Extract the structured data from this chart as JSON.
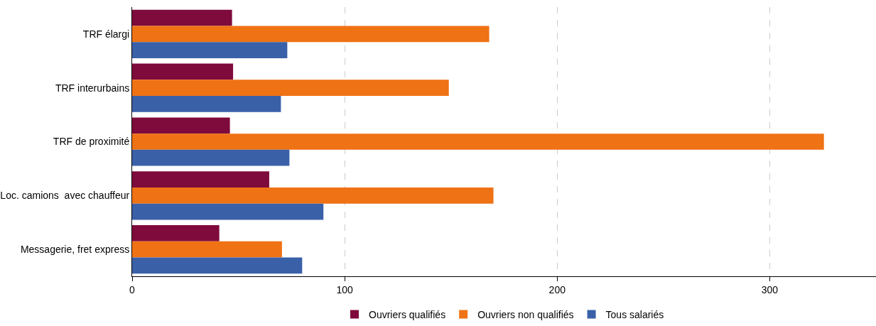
{
  "chart_data": {
    "type": "bar",
    "orientation": "horizontal",
    "categories": [
      "TRF élargi",
      "TRF interurbains",
      "TRF de proximité",
      "Loc. camions  avec chauffeur",
      "Messagerie, fret express"
    ],
    "series": [
      {
        "name": "Ouvriers qualifiés",
        "color": "#7f0a3c",
        "values": [
          47,
          47.5,
          46,
          64.5,
          41
        ]
      },
      {
        "name": "Ouvriers non qualifiés",
        "color": "#ef7215",
        "values": [
          168,
          149,
          325.5,
          170,
          70.5
        ]
      },
      {
        "name": "Tous salariés",
        "color": "#3a60a8",
        "values": [
          73,
          70,
          74,
          90,
          80
        ]
      }
    ],
    "xlim": [
      0,
      350
    ],
    "xticks": [
      0,
      100,
      200,
      300
    ],
    "grid": "x",
    "legend": "bottom"
  }
}
